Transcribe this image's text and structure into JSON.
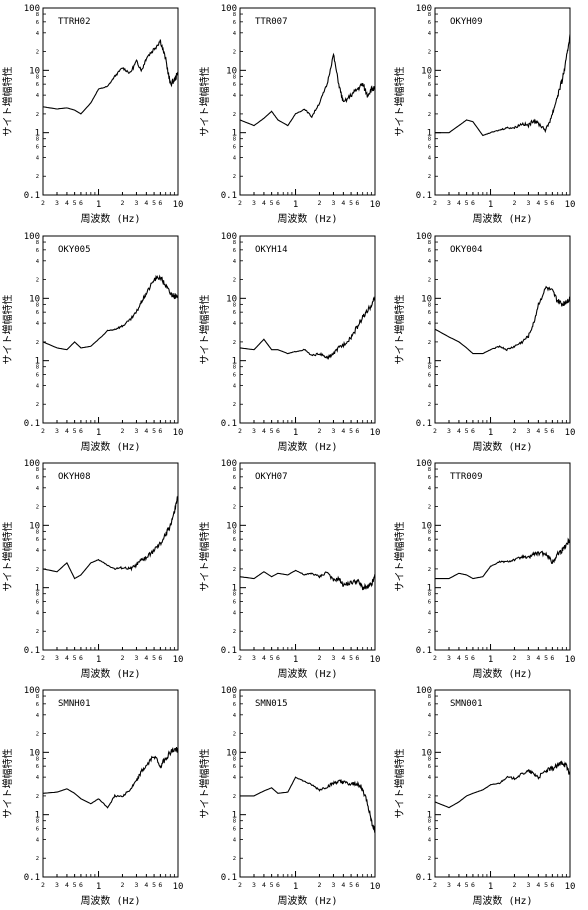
{
  "figure": {
    "ylabel": "サイト増幅特性",
    "xlabel": "周波数 (Hz)",
    "y_ticks_major": [
      "0.1",
      "1",
      "10",
      "100"
    ],
    "y_ticks_minor": [
      "2",
      "4",
      "6",
      "8"
    ],
    "x_ticks": [
      "2",
      "3",
      "4",
      "5",
      "6",
      "1",
      "2",
      "3",
      "4",
      "5",
      "6",
      "10"
    ]
  },
  "chart_data": [
    {
      "type": "line",
      "label": "TTRH02",
      "xlim": [
        0.2,
        10
      ],
      "ylim": [
        0.1,
        100
      ],
      "log_x": true,
      "log_y": true,
      "x": [
        0.2,
        0.3,
        0.4,
        0.5,
        0.6,
        0.8,
        1.0,
        1.3,
        1.6,
        2.0,
        2.5,
        3.0,
        3.5,
        4.0,
        5.0,
        6.0,
        7.0,
        8.0,
        9.0,
        10.0
      ],
      "y": [
        2.6,
        2.4,
        2.5,
        2.3,
        2.0,
        3.0,
        5.0,
        5.5,
        8.0,
        11,
        9,
        14,
        10,
        16,
        22,
        30,
        15,
        6,
        7,
        9
      ]
    },
    {
      "type": "line",
      "label": "TTR007",
      "xlim": [
        0.2,
        10
      ],
      "ylim": [
        0.1,
        100
      ],
      "log_x": true,
      "log_y": true,
      "x": [
        0.2,
        0.3,
        0.4,
        0.5,
        0.6,
        0.8,
        1.0,
        1.3,
        1.6,
        2.0,
        2.5,
        3.0,
        3.5,
        4.0,
        5.0,
        6.0,
        7.0,
        8.0,
        9.0,
        10.0
      ],
      "y": [
        1.6,
        1.3,
        1.7,
        2.2,
        1.6,
        1.3,
        2.0,
        2.4,
        1.8,
        3.0,
        6.0,
        18,
        6,
        3,
        4,
        5,
        6,
        4,
        5,
        5
      ]
    },
    {
      "type": "line",
      "label": "OKYH09",
      "xlim": [
        0.2,
        10
      ],
      "ylim": [
        0.1,
        100
      ],
      "log_x": true,
      "log_y": true,
      "x": [
        0.2,
        0.3,
        0.4,
        0.5,
        0.6,
        0.8,
        1.0,
        1.3,
        1.6,
        2.0,
        2.5,
        3.0,
        3.5,
        4.0,
        5.0,
        6.0,
        7.0,
        8.0,
        9.0,
        10.0
      ],
      "y": [
        1.0,
        1.0,
        1.3,
        1.6,
        1.5,
        0.9,
        1.0,
        1.1,
        1.2,
        1.2,
        1.4,
        1.3,
        1.6,
        1.4,
        1.1,
        2.0,
        4.0,
        7.0,
        15,
        38
      ]
    },
    {
      "type": "line",
      "label": "OKY005",
      "xlim": [
        0.2,
        10
      ],
      "ylim": [
        0.1,
        100
      ],
      "log_x": true,
      "log_y": true,
      "x": [
        0.2,
        0.3,
        0.4,
        0.5,
        0.6,
        0.8,
        1.0,
        1.3,
        1.6,
        2.0,
        2.5,
        3.0,
        3.5,
        4.0,
        5.0,
        6.0,
        7.0,
        8.0,
        9.0,
        10.0
      ],
      "y": [
        2.0,
        1.6,
        1.5,
        2.0,
        1.6,
        1.7,
        2.2,
        3.0,
        3.2,
        3.6,
        4.5,
        6.0,
        9.0,
        12,
        20,
        22,
        16,
        12,
        11,
        10
      ]
    },
    {
      "type": "line",
      "label": "OKYH14",
      "xlim": [
        0.2,
        10
      ],
      "ylim": [
        0.1,
        100
      ],
      "log_x": true,
      "log_y": true,
      "x": [
        0.2,
        0.3,
        0.4,
        0.5,
        0.6,
        0.8,
        1.0,
        1.3,
        1.6,
        2.0,
        2.5,
        3.0,
        3.5,
        4.0,
        5.0,
        6.0,
        7.0,
        8.0,
        9.0,
        10.0
      ],
      "y": [
        1.6,
        1.5,
        2.2,
        1.5,
        1.5,
        1.3,
        1.4,
        1.5,
        1.2,
        1.3,
        1.1,
        1.3,
        1.6,
        1.8,
        2.4,
        3.5,
        5.0,
        6.0,
        8.0,
        10
      ]
    },
    {
      "type": "line",
      "label": "OKY004",
      "xlim": [
        0.2,
        10
      ],
      "ylim": [
        0.1,
        100
      ],
      "log_x": true,
      "log_y": true,
      "x": [
        0.2,
        0.3,
        0.4,
        0.5,
        0.6,
        0.8,
        1.0,
        1.3,
        1.6,
        2.0,
        2.5,
        3.0,
        3.5,
        4.0,
        5.0,
        6.0,
        7.0,
        8.0,
        9.0,
        10.0
      ],
      "y": [
        3.2,
        2.4,
        2.0,
        1.6,
        1.3,
        1.3,
        1.5,
        1.7,
        1.5,
        1.7,
        2.0,
        2.5,
        4.0,
        8.0,
        15,
        13,
        9,
        8,
        9,
        10
      ]
    },
    {
      "type": "line",
      "label": "OKYH08",
      "xlim": [
        0.2,
        10
      ],
      "ylim": [
        0.1,
        100
      ],
      "log_x": true,
      "log_y": true,
      "x": [
        0.2,
        0.3,
        0.4,
        0.5,
        0.6,
        0.8,
        1.0,
        1.3,
        1.6,
        2.0,
        2.5,
        3.0,
        3.5,
        4.0,
        5.0,
        6.0,
        7.0,
        8.0,
        9.0,
        10.0
      ],
      "y": [
        2.0,
        1.8,
        2.5,
        1.4,
        1.6,
        2.5,
        2.8,
        2.3,
        2.0,
        2.1,
        2.0,
        2.3,
        2.8,
        3.0,
        4.0,
        5.0,
        7.0,
        10,
        16,
        30
      ]
    },
    {
      "type": "line",
      "label": "OKYH07",
      "xlim": [
        0.2,
        10
      ],
      "ylim": [
        0.1,
        100
      ],
      "log_x": true,
      "log_y": true,
      "x": [
        0.2,
        0.3,
        0.4,
        0.5,
        0.6,
        0.8,
        1.0,
        1.3,
        1.6,
        2.0,
        2.5,
        3.0,
        3.5,
        4.0,
        5.0,
        6.0,
        7.0,
        8.0,
        9.0,
        10.0
      ],
      "y": [
        1.5,
        1.4,
        1.8,
        1.5,
        1.7,
        1.6,
        1.9,
        1.6,
        1.7,
        1.5,
        1.8,
        1.3,
        1.4,
        1.1,
        1.2,
        1.3,
        1.0,
        1.0,
        1.1,
        1.5
      ]
    },
    {
      "type": "line",
      "label": "TTR009",
      "xlim": [
        0.2,
        10
      ],
      "ylim": [
        0.1,
        100
      ],
      "log_x": true,
      "log_y": true,
      "x": [
        0.2,
        0.3,
        0.4,
        0.5,
        0.6,
        0.8,
        1.0,
        1.3,
        1.6,
        2.0,
        2.5,
        3.0,
        3.5,
        4.0,
        5.0,
        6.0,
        7.0,
        8.0,
        9.0,
        10.0
      ],
      "y": [
        1.4,
        1.4,
        1.7,
        1.6,
        1.4,
        1.5,
        2.2,
        2.6,
        2.6,
        2.8,
        3.1,
        3.0,
        3.5,
        3.5,
        3.6,
        2.5,
        3.5,
        4.0,
        5.0,
        6.0
      ]
    },
    {
      "type": "line",
      "label": "SMNH01",
      "xlim": [
        0.2,
        10
      ],
      "ylim": [
        0.1,
        100
      ],
      "log_x": true,
      "log_y": true,
      "x": [
        0.2,
        0.3,
        0.4,
        0.5,
        0.6,
        0.8,
        1.0,
        1.3,
        1.6,
        2.0,
        2.5,
        3.0,
        3.5,
        4.0,
        5.0,
        6.0,
        7.0,
        8.0,
        9.0,
        10.0
      ],
      "y": [
        2.2,
        2.3,
        2.6,
        2.2,
        1.8,
        1.5,
        1.8,
        1.3,
        2.0,
        2.0,
        2.5,
        3.5,
        5.0,
        6.0,
        9.0,
        6.0,
        8.0,
        10,
        11,
        11
      ]
    },
    {
      "type": "line",
      "label": "SMN015",
      "xlim": [
        0.2,
        10
      ],
      "ylim": [
        0.1,
        100
      ],
      "log_x": true,
      "log_y": true,
      "x": [
        0.2,
        0.3,
        0.4,
        0.5,
        0.6,
        0.8,
        1.0,
        1.3,
        1.6,
        2.0,
        2.5,
        3.0,
        3.5,
        4.0,
        5.0,
        6.0,
        7.0,
        8.0,
        9.0,
        10.0
      ],
      "y": [
        2.0,
        2.0,
        2.4,
        2.7,
        2.2,
        2.3,
        4.0,
        3.4,
        3.0,
        2.5,
        2.8,
        3.2,
        3.4,
        3.3,
        3.0,
        3.2,
        2.5,
        1.6,
        0.8,
        0.55
      ]
    },
    {
      "type": "line",
      "label": "SMN001",
      "xlim": [
        0.2,
        10
      ],
      "ylim": [
        0.1,
        100
      ],
      "log_x": true,
      "log_y": true,
      "x": [
        0.2,
        0.3,
        0.4,
        0.5,
        0.6,
        0.8,
        1.0,
        1.3,
        1.6,
        2.0,
        2.5,
        3.0,
        3.5,
        4.0,
        5.0,
        6.0,
        7.0,
        8.0,
        9.0,
        10.0
      ],
      "y": [
        1.6,
        1.3,
        1.6,
        2.0,
        2.2,
        2.5,
        3.0,
        3.2,
        4.0,
        3.8,
        4.5,
        5.0,
        4.5,
        4.0,
        5.0,
        5.5,
        6.0,
        7.0,
        6.0,
        4.5
      ]
    }
  ]
}
